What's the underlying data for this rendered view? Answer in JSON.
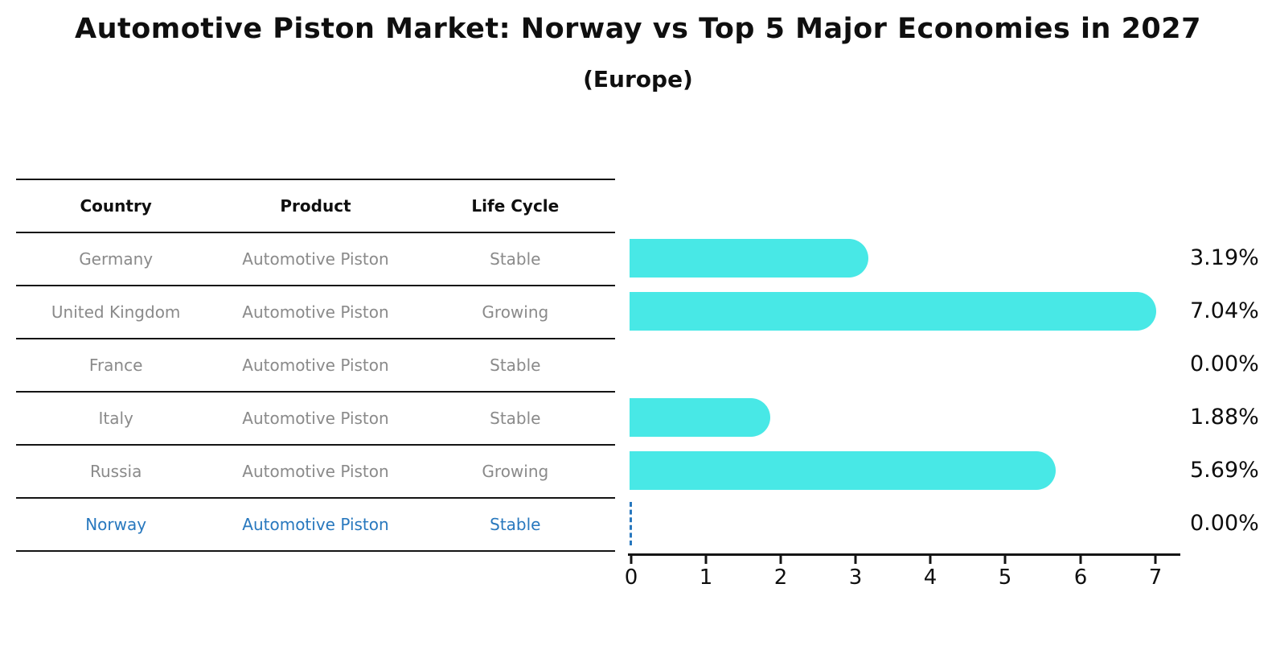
{
  "title": "Automotive Piston Market: Norway vs Top 5 Major Economies in 2027",
  "subtitle": "(Europe)",
  "chart_data": {
    "type": "bar",
    "orientation": "horizontal",
    "title": "Automotive Piston Market: Norway vs Top 5 Major Economies in 2027",
    "subtitle": "(Europe)",
    "columns": [
      "Country",
      "Product",
      "Life Cycle"
    ],
    "rows": [
      {
        "country": "Germany",
        "product": "Automotive Piston",
        "life_cycle": "Stable",
        "value": 3.19,
        "value_label": "3.19%",
        "highlight": false
      },
      {
        "country": "United Kingdom",
        "product": "Automotive Piston",
        "life_cycle": "Growing",
        "value": 7.04,
        "value_label": "7.04%",
        "highlight": false
      },
      {
        "country": "France",
        "product": "Automotive Piston",
        "life_cycle": "Stable",
        "value": 0.0,
        "value_label": "0.00%",
        "highlight": false
      },
      {
        "country": "Italy",
        "product": "Automotive Piston",
        "life_cycle": "Stable",
        "value": 1.88,
        "value_label": "1.88%",
        "highlight": false
      },
      {
        "country": "Russia",
        "product": "Automotive Piston",
        "life_cycle": "Growing",
        "value": 5.69,
        "value_label": "5.69%",
        "highlight": false
      },
      {
        "country": "Norway",
        "product": "Automotive Piston",
        "life_cycle": "Stable",
        "value": 0.0,
        "value_label": "0.00%",
        "highlight": true
      }
    ],
    "x_ticks": [
      0,
      1,
      2,
      3,
      4,
      5,
      6,
      7
    ],
    "xlim": [
      0,
      7.38
    ],
    "grid": false,
    "legend": "none",
    "bar_color": "#48e8e6",
    "highlight_color": "#2878be",
    "zero_marker_style": "dashed-line-on-highlight-row"
  },
  "colors": {
    "background": "#ffffff",
    "bar": "#48e8e6",
    "highlight": "#2878be",
    "table_text": "#8a8a8a",
    "heading_text": "#0f0f0f",
    "rule_line": "#141414"
  }
}
